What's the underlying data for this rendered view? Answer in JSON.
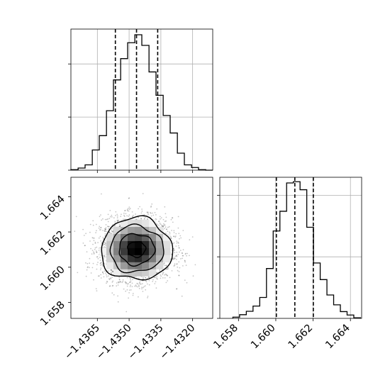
{
  "chart_data": [
    {
      "panel": "x-marginal",
      "type": "histogram",
      "xlim": [
        -1.43775,
        -1.43105
      ],
      "ylim": [
        0,
        2550
      ],
      "x_ticks": [
        -1.4365,
        -1.435,
        -1.4335,
        -1.432
      ],
      "y_ticks": [
        0,
        1000,
        2000
      ],
      "grid": true,
      "bins": [
        -1.43775,
        -1.43741,
        -1.43708,
        -1.43674,
        -1.43641,
        -1.43607,
        -1.43574,
        -1.4354,
        -1.43507,
        -1.43473,
        -1.4344,
        -1.43406,
        -1.43373,
        -1.43339,
        -1.43306,
        -1.43272,
        -1.43239,
        -1.43205,
        -1.43172,
        -1.43138,
        -1.43105
      ],
      "counts": [
        10,
        40,
        100,
        380,
        650,
        1120,
        1700,
        2100,
        2400,
        2550,
        2350,
        1850,
        1410,
        1030,
        700,
        320,
        100,
        50,
        10,
        0
      ],
      "quantiles": [
        -1.43565,
        -1.43465,
        -1.43365
      ]
    },
    {
      "panel": "y-marginal",
      "type": "histogram",
      "xlim": [
        1.657,
        1.6646
      ],
      "ylim": [
        0,
        2200
      ],
      "x_ticks": [
        1.658,
        1.66,
        1.662,
        1.664
      ],
      "x_tick_labels": [
        "1.658",
        "1.660",
        "1.662",
        "1.664"
      ],
      "y_ticks": [
        0,
        1000,
        2000
      ],
      "grid": true,
      "bins": [
        1.6577,
        1.65806,
        1.65842,
        1.65878,
        1.65914,
        1.6595,
        1.65986,
        1.66022,
        1.66058,
        1.66094,
        1.6613,
        1.66166,
        1.66202,
        1.66238,
        1.66274,
        1.6631,
        1.66346,
        1.66382,
        1.66418,
        1.66454
      ],
      "counts": [
        20,
        60,
        115,
        200,
        340,
        810,
        1420,
        1740,
        2200,
        2220,
        2090,
        1480,
        900,
        630,
        380,
        220,
        110,
        55,
        10
      ],
      "quantiles": [
        1.66003,
        1.66102,
        1.66201
      ]
    },
    {
      "panel": "joint",
      "type": "scatter-density",
      "xlim": [
        -1.43775,
        -1.43105
      ],
      "ylim": [
        1.6571,
        1.6651
      ],
      "x_ticks": [
        -1.4365,
        -1.435,
        -1.4335,
        -1.432
      ],
      "x_tick_labels": [
        "−1.4365",
        "−1.4350",
        "−1.4335",
        "−1.4320"
      ],
      "y_ticks": [
        1.658,
        1.66,
        1.662,
        1.664
      ],
      "y_tick_labels": [
        "1.658",
        "1.660",
        "1.662",
        "1.664"
      ],
      "grid": false,
      "center": [
        -1.43465,
        1.66102
      ],
      "sigma": [
        0.00084,
        0.00088
      ],
      "n_points": 3500,
      "contour_levels_sigma": [
        0.5,
        1.0,
        1.5,
        2.0
      ]
    }
  ]
}
